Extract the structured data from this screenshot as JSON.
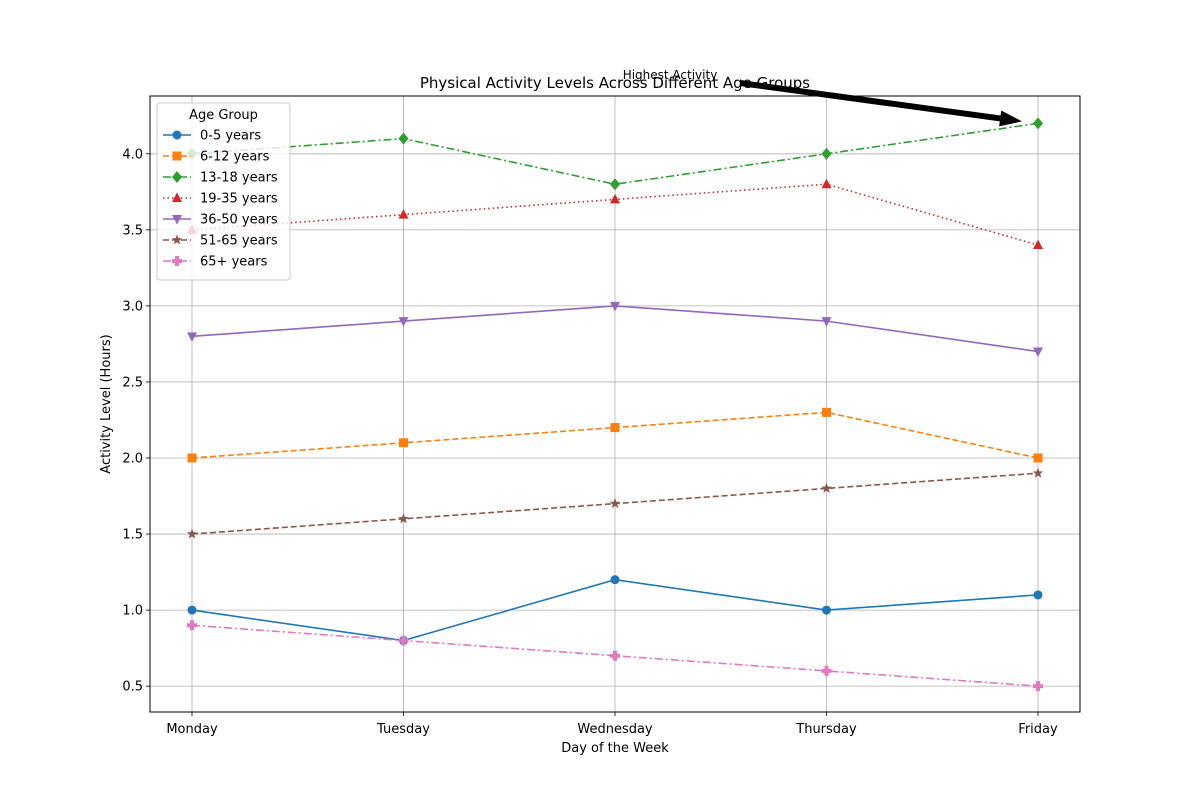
{
  "chart_data": {
    "type": "line",
    "title": "Physical Activity Levels Across Different Age Groups",
    "xlabel": "Day of the Week",
    "ylabel": "Activity Level (Hours)",
    "categories": [
      "Monday",
      "Tuesday",
      "Wednesday",
      "Thursday",
      "Friday"
    ],
    "ylim": [
      0.33,
      4.38
    ],
    "yticks": [
      "0.5",
      "1.0",
      "1.5",
      "2.0",
      "2.5",
      "3.0",
      "3.5",
      "4.0"
    ],
    "grid": true,
    "legend": {
      "title": "Age Group",
      "placement": "top-left"
    },
    "series": [
      {
        "name": "0-5 years",
        "values": [
          1.0,
          0.8,
          1.2,
          1.0,
          1.1
        ],
        "color": "#1f77b4",
        "linestyle": "solid",
        "marker": "circle"
      },
      {
        "name": "6-12 years",
        "values": [
          2.0,
          2.1,
          2.2,
          2.3,
          2.0
        ],
        "color": "#ff7f0e",
        "linestyle": "dashed",
        "marker": "square"
      },
      {
        "name": "13-18 years",
        "values": [
          4.0,
          4.1,
          3.8,
          4.0,
          4.2
        ],
        "color": "#2ca02c",
        "linestyle": "dashdot",
        "marker": "diamond"
      },
      {
        "name": "19-35 years",
        "values": [
          3.5,
          3.6,
          3.7,
          3.8,
          3.4
        ],
        "color": "#d62728",
        "linestyle": "dotted",
        "marker": "triangle-up"
      },
      {
        "name": "36-50 years",
        "values": [
          2.8,
          2.9,
          3.0,
          2.9,
          2.7
        ],
        "color": "#9467bd",
        "linestyle": "solid",
        "marker": "triangle-down"
      },
      {
        "name": "51-65 years",
        "values": [
          1.5,
          1.6,
          1.7,
          1.8,
          1.9
        ],
        "color": "#8c564b",
        "linestyle": "dashed",
        "marker": "star"
      },
      {
        "name": "65+ years",
        "values": [
          0.9,
          0.8,
          0.7,
          0.6,
          0.5
        ],
        "color": "#e377c2",
        "linestyle": "dashdot",
        "marker": "plus"
      }
    ],
    "annotations": [
      {
        "text": "Highest Activity",
        "target_category": "Friday",
        "target_value": 4.2
      }
    ]
  }
}
